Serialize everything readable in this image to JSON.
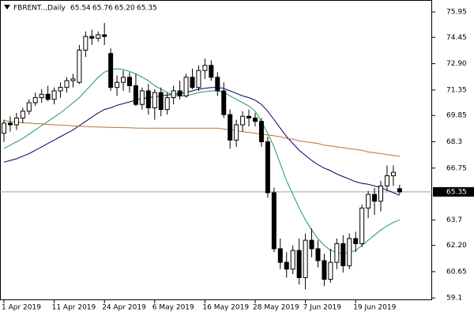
{
  "chart_data": {
    "type": "candlestick",
    "title": "FBRENT..,Daily",
    "ohlc_labels": [
      "65.54",
      "65.76",
      "65.20",
      "65.35"
    ],
    "categories": [
      "1 Apr 2019",
      null,
      null,
      null,
      null,
      null,
      null,
      null,
      "11 Apr 2019",
      null,
      null,
      null,
      null,
      null,
      null,
      null,
      "24 Apr 2019",
      null,
      null,
      null,
      null,
      null,
      null,
      null,
      "6 May 2019",
      null,
      null,
      null,
      null,
      null,
      null,
      null,
      "16 May 2019",
      null,
      null,
      null,
      null,
      null,
      null,
      null,
      "28 May 2019",
      null,
      null,
      null,
      null,
      null,
      null,
      null,
      "7 Jun 2019",
      null,
      null,
      null,
      null,
      null,
      null,
      null,
      "19 Jun 2019",
      null,
      null,
      null,
      null,
      null,
      null,
      null
    ],
    "candles": [
      [
        68.8,
        69.6,
        68.3,
        69.4
      ],
      [
        69.4,
        69.8,
        68.9,
        69.3
      ],
      [
        69.3,
        70.0,
        69.0,
        69.7
      ],
      [
        69.7,
        70.3,
        69.4,
        70.1
      ],
      [
        70.1,
        70.8,
        69.9,
        70.6
      ],
      [
        70.6,
        71.2,
        70.4,
        70.9
      ],
      [
        70.9,
        71.4,
        70.6,
        71.1
      ],
      [
        71.1,
        71.6,
        70.7,
        70.8
      ],
      [
        70.8,
        71.5,
        70.5,
        71.3
      ],
      [
        71.3,
        71.8,
        70.9,
        71.5
      ],
      [
        71.5,
        72.1,
        71.2,
        71.9
      ],
      [
        71.9,
        72.3,
        71.5,
        72.0
      ],
      [
        71.8,
        74.0,
        71.7,
        73.7
      ],
      [
        73.7,
        74.8,
        73.3,
        74.5
      ],
      [
        74.5,
        74.9,
        74.0,
        74.4
      ],
      [
        74.4,
        74.8,
        74.2,
        74.6
      ],
      [
        74.6,
        75.3,
        74.0,
        74.5
      ],
      [
        73.5,
        73.8,
        71.3,
        71.5
      ],
      [
        71.5,
        72.2,
        71.0,
        71.8
      ],
      [
        71.8,
        72.5,
        71.3,
        72.1
      ],
      [
        72.1,
        72.4,
        71.2,
        71.6
      ],
      [
        71.6,
        72.3,
        70.4,
        70.5
      ],
      [
        70.5,
        71.5,
        70.2,
        71.3
      ],
      [
        71.3,
        71.7,
        69.9,
        70.3
      ],
      [
        70.3,
        71.4,
        69.6,
        71.2
      ],
      [
        71.2,
        71.5,
        69.8,
        70.2
      ],
      [
        70.2,
        71.2,
        69.9,
        70.9
      ],
      [
        70.9,
        71.6,
        70.5,
        71.3
      ],
      [
        71.3,
        71.9,
        70.8,
        71.0
      ],
      [
        71.0,
        72.3,
        70.9,
        72.1
      ],
      [
        72.1,
        72.6,
        71.4,
        71.5
      ],
      [
        71.5,
        72.8,
        71.3,
        72.5
      ],
      [
        72.5,
        73.2,
        72.0,
        72.8
      ],
      [
        72.8,
        73.1,
        71.9,
        72.1
      ],
      [
        72.1,
        72.4,
        71.0,
        71.3
      ],
      [
        71.3,
        71.8,
        69.7,
        69.9
      ],
      [
        69.9,
        70.2,
        67.9,
        68.4
      ],
      [
        68.4,
        69.6,
        68.0,
        69.3
      ],
      [
        69.3,
        70.1,
        68.9,
        69.8
      ],
      [
        69.8,
        70.2,
        69.2,
        69.7
      ],
      [
        69.7,
        70.0,
        69.2,
        69.5
      ],
      [
        69.5,
        69.7,
        68.0,
        68.3
      ],
      [
        68.3,
        68.6,
        65.0,
        65.3
      ],
      [
        65.3,
        65.6,
        61.8,
        62.0
      ],
      [
        62.0,
        62.6,
        60.8,
        61.2
      ],
      [
        61.2,
        61.8,
        60.3,
        60.8
      ],
      [
        60.8,
        62.2,
        60.5,
        61.9
      ],
      [
        61.9,
        62.6,
        59.9,
        60.3
      ],
      [
        60.3,
        62.9,
        59.6,
        62.5
      ],
      [
        62.5,
        63.2,
        61.5,
        62.0
      ],
      [
        62.0,
        62.5,
        60.9,
        61.3
      ],
      [
        61.3,
        61.7,
        59.8,
        60.2
      ],
      [
        60.2,
        62.0,
        60.0,
        61.2
      ],
      [
        61.2,
        62.6,
        60.8,
        62.3
      ],
      [
        62.3,
        62.8,
        60.6,
        61.0
      ],
      [
        61.0,
        62.9,
        60.8,
        62.6
      ],
      [
        62.6,
        63.0,
        61.8,
        62.3
      ],
      [
        62.3,
        64.6,
        62.1,
        64.4
      ],
      [
        64.4,
        65.4,
        63.8,
        65.2
      ],
      [
        65.2,
        65.6,
        64.0,
        64.8
      ],
      [
        64.8,
        66.0,
        64.2,
        65.7
      ],
      [
        65.7,
        66.9,
        65.4,
        66.3
      ],
      [
        66.3,
        66.9,
        65.7,
        66.5
      ],
      [
        65.54,
        65.76,
        65.2,
        65.35
      ]
    ],
    "lines": [
      {
        "color": "#000066",
        "values": [
          67.1,
          67.2,
          67.3,
          67.45,
          67.6,
          67.8,
          68.0,
          68.2,
          68.4,
          68.6,
          68.8,
          69.0,
          69.25,
          69.5,
          69.75,
          70.0,
          70.2,
          70.3,
          70.45,
          70.55,
          70.65,
          70.75,
          70.85,
          70.9,
          70.95,
          71.0,
          71.05,
          71.1,
          71.15,
          71.2,
          71.3,
          71.4,
          71.45,
          71.5,
          71.5,
          71.45,
          71.3,
          71.15,
          71.0,
          70.9,
          70.75,
          70.5,
          70.1,
          69.6,
          69.1,
          68.6,
          68.2,
          67.8,
          67.5,
          67.2,
          66.95,
          66.75,
          66.6,
          66.4,
          66.25,
          66.1,
          65.95,
          65.85,
          65.8,
          65.7,
          65.6,
          65.45,
          65.3,
          65.15
        ]
      },
      {
        "color": "#1e9a5a",
        "values": [
          67.9,
          68.1,
          68.3,
          68.5,
          68.75,
          69.0,
          69.25,
          69.5,
          69.75,
          70.0,
          70.3,
          70.6,
          70.9,
          71.3,
          71.7,
          72.1,
          72.4,
          72.55,
          72.6,
          72.55,
          72.45,
          72.3,
          72.1,
          71.9,
          71.6,
          71.4,
          71.2,
          71.05,
          71.0,
          71.0,
          71.1,
          71.2,
          71.25,
          71.3,
          71.3,
          71.2,
          71.0,
          70.8,
          70.6,
          70.4,
          70.1,
          69.5,
          68.8,
          68.0,
          67.0,
          66.0,
          65.2,
          64.4,
          63.7,
          63.1,
          62.6,
          62.2,
          61.9,
          61.8,
          61.7,
          61.8,
          61.9,
          62.2,
          62.5,
          62.8,
          63.1,
          63.35,
          63.55,
          63.7
        ]
      },
      {
        "color": "#b87333",
        "values": [
          69.55,
          69.5,
          69.45,
          69.42,
          69.4,
          69.37,
          69.35,
          69.32,
          69.3,
          69.28,
          69.26,
          69.24,
          69.22,
          69.2,
          69.18,
          69.17,
          69.16,
          69.15,
          69.14,
          69.13,
          69.12,
          69.11,
          69.1,
          69.1,
          69.1,
          69.1,
          69.1,
          69.1,
          69.1,
          69.1,
          69.1,
          69.1,
          69.1,
          69.1,
          69.1,
          69.05,
          69.0,
          68.95,
          68.9,
          68.85,
          68.8,
          68.75,
          68.7,
          68.65,
          68.6,
          68.5,
          68.45,
          68.35,
          68.3,
          68.25,
          68.2,
          68.1,
          68.05,
          68.0,
          67.95,
          67.9,
          67.85,
          67.8,
          67.7,
          67.65,
          67.6,
          67.55,
          67.5,
          67.45
        ]
      }
    ],
    "ylim": [
      58.97,
      76.65
    ],
    "yticks": [
      75.95,
      74.45,
      {
        "value": 72.9,
        "label": "72.90"
      },
      71.35,
      69.85,
      68.3,
      66.75,
      63.7,
      {
        "value": 62.2,
        "label": "62.20"
      },
      60.65,
      59.1
    ]
  }
}
